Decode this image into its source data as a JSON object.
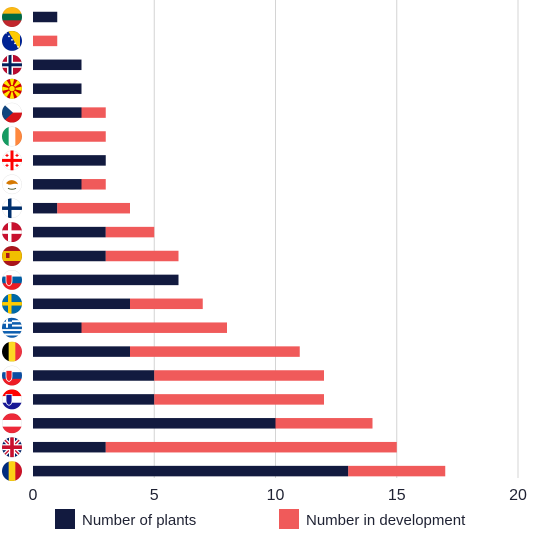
{
  "chart_data": {
    "type": "bar",
    "orientation": "horizontal",
    "stacked": true,
    "categories": [
      "Lithuania",
      "Bosnia and Herzegovina",
      "Norway",
      "North Macedonia",
      "Czech Republic",
      "Ireland",
      "Georgia",
      "Cyprus",
      "Finland",
      "Denmark",
      "Spain",
      "Slovenia",
      "Sweden",
      "Greece",
      "Belgium",
      "Slovakia",
      "Croatia",
      "Austria",
      "United Kingdom",
      "Romania"
    ],
    "series": [
      {
        "name": "Number of plants",
        "color": "#121a3f",
        "values": [
          1,
          0,
          2,
          2,
          2,
          0,
          3,
          2,
          1,
          3,
          3,
          6,
          4,
          2,
          4,
          5,
          5,
          10,
          3,
          13
        ]
      },
      {
        "name": "Number in development",
        "color": "#f05a5a",
        "values": [
          0,
          1,
          0,
          0,
          1,
          3,
          0,
          1,
          3,
          2,
          3,
          0,
          3,
          6,
          7,
          7,
          7,
          4,
          12,
          4
        ]
      }
    ],
    "x_ticks": [
      "0",
      "5",
      "10",
      "15",
      "20"
    ],
    "xlim": [
      0,
      20
    ],
    "grid": "vertical",
    "legend_position": "bottom"
  },
  "flags": [
    {
      "icon": "lithuania-flag-icon",
      "colors": [
        "#fdb913",
        "#006a44",
        "#c1272d"
      ],
      "layout": "h3"
    },
    {
      "icon": "bosnia-flag-icon",
      "colors": [
        "#002395",
        "#fecb00"
      ],
      "layout": "bosnia"
    },
    {
      "icon": "norway-flag-icon",
      "colors": [
        "#ba0c2f",
        "#ffffff",
        "#00205b"
      ],
      "layout": "nordic"
    },
    {
      "icon": "north-macedonia-flag-icon",
      "colors": [
        "#d20000",
        "#ffe600"
      ],
      "layout": "sun"
    },
    {
      "icon": "czech-flag-icon",
      "colors": [
        "#ffffff",
        "#d7141a",
        "#11457e"
      ],
      "layout": "czech"
    },
    {
      "icon": "ireland-flag-icon",
      "colors": [
        "#169b62",
        "#ffffff",
        "#ff883e"
      ],
      "layout": "v3"
    },
    {
      "icon": "georgia-flag-icon",
      "colors": [
        "#ffffff",
        "#ff0000"
      ],
      "layout": "georgia"
    },
    {
      "icon": "cyprus-flag-icon",
      "colors": [
        "#ffffff",
        "#d57800",
        "#4e5b31"
      ],
      "layout": "cyprus"
    },
    {
      "icon": "finland-flag-icon",
      "colors": [
        "#ffffff",
        "#002f6c"
      ],
      "layout": "nordic-simple"
    },
    {
      "icon": "denmark-flag-icon",
      "colors": [
        "#c8102e",
        "#ffffff"
      ],
      "layout": "nordic-simple"
    },
    {
      "icon": "spain-flag-icon",
      "colors": [
        "#aa151b",
        "#f1bf00"
      ],
      "layout": "spain"
    },
    {
      "icon": "slovenia-flag-icon",
      "colors": [
        "#ffffff",
        "#005da4",
        "#ed1c24"
      ],
      "layout": "h3-badge"
    },
    {
      "icon": "sweden-flag-icon",
      "colors": [
        "#006aa7",
        "#fecc00"
      ],
      "layout": "nordic-simple"
    },
    {
      "icon": "greece-flag-icon",
      "colors": [
        "#0d5eaf",
        "#ffffff"
      ],
      "layout": "greece"
    },
    {
      "icon": "belgium-flag-icon",
      "colors": [
        "#000000",
        "#fdda24",
        "#ef3340"
      ],
      "layout": "v3"
    },
    {
      "icon": "slovakia-flag-icon",
      "colors": [
        "#ffffff",
        "#0b4ea2",
        "#ee1c25"
      ],
      "layout": "h3-badge"
    },
    {
      "icon": "croatia-flag-icon",
      "colors": [
        "#ff0000",
        "#ffffff",
        "#171796"
      ],
      "layout": "h3-badge"
    },
    {
      "icon": "austria-flag-icon",
      "colors": [
        "#ed2939",
        "#ffffff",
        "#ed2939"
      ],
      "layout": "h3"
    },
    {
      "icon": "united-kingdom-flag-icon",
      "colors": [
        "#012169",
        "#ffffff",
        "#c8102e"
      ],
      "layout": "uk"
    },
    {
      "icon": "romania-flag-icon",
      "colors": [
        "#002b7f",
        "#fcd116",
        "#ce1126"
      ],
      "layout": "v3"
    }
  ],
  "legend": [
    {
      "label": "Number of plants",
      "color": "#121a3f"
    },
    {
      "label": "Number in development",
      "color": "#f05a5a"
    }
  ],
  "colors": {
    "grid": "#d4d4d4",
    "text": "#1f2233"
  }
}
